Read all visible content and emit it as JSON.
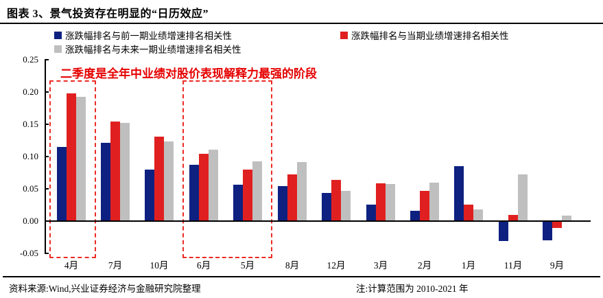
{
  "header": {
    "title": "图表 3、景气投资存在明显的“日历效应”"
  },
  "legend": {
    "items": [
      {
        "label": "涨跌幅排名与前一期业绩增速排名相关性",
        "color": "#0e2181"
      },
      {
        "label": "涨跌幅排名与当期业绩增速排名相关性",
        "color": "#e02020"
      },
      {
        "label": "涨跌幅排名与未来一期业绩增速排名相关性",
        "color": "#bfbfbf"
      }
    ]
  },
  "annotation": {
    "text": "二季度是全年中业绩对股价表现解释力最强的阶段",
    "color": "#e60000"
  },
  "chart_data": {
    "type": "bar",
    "title": "",
    "xlabel": "",
    "ylabel": "",
    "categories": [
      "4月",
      "7月",
      "10月",
      "6月",
      "5月",
      "8月",
      "12月",
      "3月",
      "2月",
      "1月",
      "11月",
      "9月"
    ],
    "series": [
      {
        "name": "涨跌幅排名与前一期业绩增速排名相关性",
        "color": "#0e2181",
        "values": [
          0.115,
          0.121,
          0.08,
          0.087,
          0.056,
          0.054,
          0.044,
          0.026,
          0.016,
          0.085,
          -0.031,
          -0.03
        ]
      },
      {
        "name": "涨跌幅排名与当期业绩增速排名相关性",
        "color": "#e02020",
        "values": [
          0.198,
          0.154,
          0.131,
          0.104,
          0.08,
          0.072,
          0.064,
          0.059,
          0.047,
          0.026,
          0.01,
          -0.011
        ]
      },
      {
        "name": "涨跌幅排名与未来一期业绩增速排名相关性",
        "color": "#bfbfbf",
        "values": [
          0.193,
          0.152,
          0.123,
          0.111,
          0.093,
          0.091,
          0.047,
          0.057,
          0.06,
          0.018,
          0.072,
          0.008
        ]
      }
    ],
    "ylim": [
      -0.05,
      0.25
    ],
    "ytick_labels": [
      "0.25",
      "0.20",
      "0.15",
      "0.10",
      "0.05",
      "0.00",
      "-0.05"
    ],
    "ytick_values": [
      0.25,
      0.2,
      0.15,
      0.1,
      0.05,
      0.0,
      -0.05
    ],
    "grid": false,
    "legend_position": "top",
    "highlighted_groups": [
      [
        "4月"
      ],
      [
        "6月",
        "5月"
      ]
    ]
  },
  "footer": {
    "source": "资料来源:Wind,兴业证券经济与金融研究院整理",
    "note": "注:计算范围为 2010-2021 年"
  }
}
